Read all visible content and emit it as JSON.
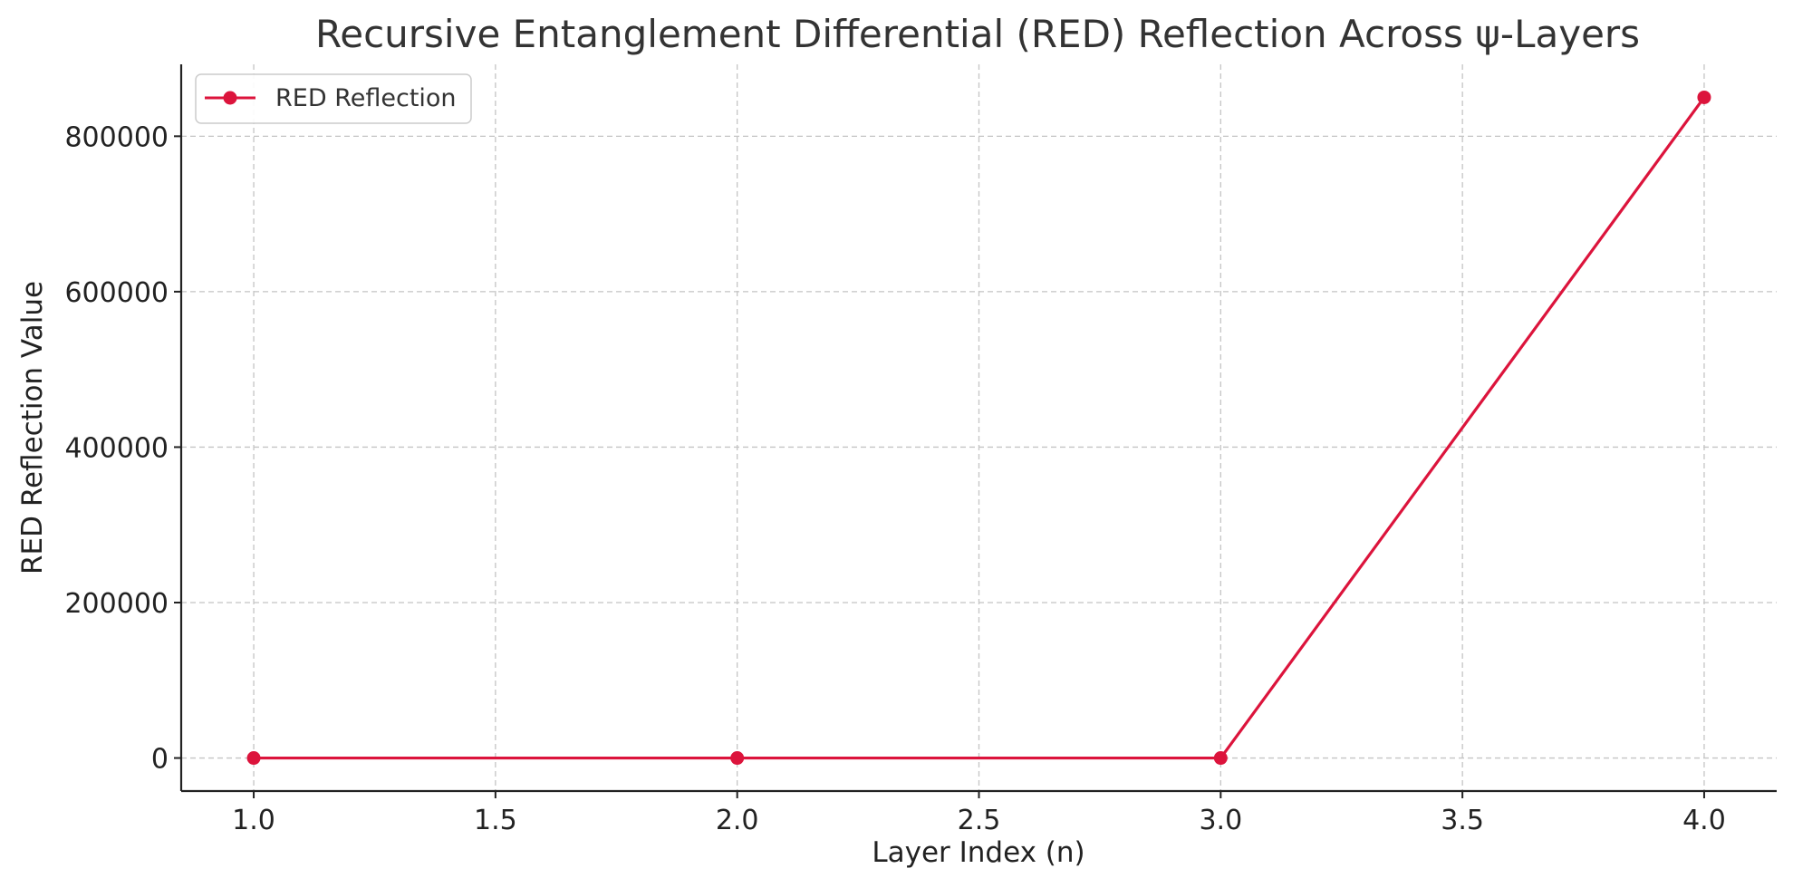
{
  "chart_data": {
    "type": "line",
    "title": "Recursive Entanglement Differential (RED) Reflection Across ψ-Layers",
    "xlabel": "Layer Index (n)",
    "ylabel": "RED Reflection Value",
    "x": [
      1,
      2,
      3,
      4
    ],
    "series": [
      {
        "name": "RED Reflection",
        "values": [
          0,
          0,
          0,
          850000
        ],
        "color": "#dc143c",
        "marker": "circle"
      }
    ],
    "xlim": [
      0.85,
      4.15
    ],
    "ylim": [
      -42500,
      892500
    ],
    "xticks": [
      "1.0",
      "1.5",
      "2.0",
      "2.5",
      "3.0",
      "3.5",
      "4.0"
    ],
    "yticks": [
      "0",
      "200000",
      "400000",
      "600000",
      "800000"
    ],
    "grid": true,
    "legend_position": "top-left"
  }
}
